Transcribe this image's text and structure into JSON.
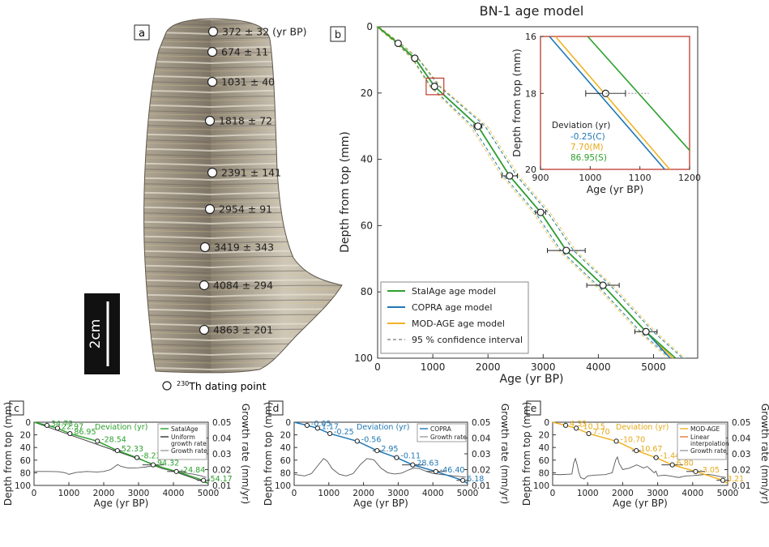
{
  "palette": {
    "satalage": "#2ca02c",
    "copra": "#1f77b4",
    "modage": "#f0b323",
    "linear": "#e07a3a",
    "growth": "#555555",
    "dev_green": "#2ca02c",
    "dev_blue": "#1f77b4",
    "dev_orange": "#e6a817"
  },
  "panel_a": {
    "letter": "a",
    "scale_label": "2cm",
    "legend_label": "230Th dating point",
    "legend_sup": "230",
    "legend_rest": "Th dating point",
    "dates": [
      {
        "text": "372 ± 32 (yr BP)"
      },
      {
        "text": "674 ± 11"
      },
      {
        "text": "1031 ± 40"
      },
      {
        "text": "1818 ± 72"
      },
      {
        "text": "2391 ± 141"
      },
      {
        "text": "2954 ± 91"
      },
      {
        "text": "3419 ± 343"
      },
      {
        "text": "4084 ± 294"
      },
      {
        "text": "4863 ± 201"
      }
    ]
  },
  "chart_data": [
    {
      "id": "b",
      "type": "line",
      "title": "BN-1 age model",
      "letter": "b",
      "xlabel": "Age (yr BP)",
      "ylabel": "Depth from top (mm)",
      "xlim": [
        0,
        5800
      ],
      "ylim": [
        0,
        100
      ],
      "xticks": [
        0,
        1000,
        2000,
        3000,
        4000,
        5000
      ],
      "yticks": [
        0,
        20,
        40,
        60,
        80,
        100
      ],
      "legend_position": "bottom-left",
      "dating_points": [
        {
          "age": 372,
          "err": 32,
          "depth": 5
        },
        {
          "age": 674,
          "err": 11,
          "depth": 9.5
        },
        {
          "age": 1031,
          "err": 40,
          "depth": 18
        },
        {
          "age": 1818,
          "err": 72,
          "depth": 30
        },
        {
          "age": 2391,
          "err": 141,
          "depth": 45
        },
        {
          "age": 2954,
          "err": 91,
          "depth": 56
        },
        {
          "age": 3419,
          "err": 343,
          "depth": 67.5
        },
        {
          "age": 4084,
          "err": 294,
          "depth": 78
        },
        {
          "age": 4863,
          "err": 201,
          "depth": 92
        }
      ],
      "series": [
        {
          "name": "StalAge age model",
          "key": "satalage",
          "points": [
            [
              0,
              0
            ],
            [
              372,
              5
            ],
            [
              674,
              9.5
            ],
            [
              1031,
              18
            ],
            [
              1818,
              30
            ],
            [
              2391,
              45
            ],
            [
              2954,
              56
            ],
            [
              3419,
              67.5
            ],
            [
              4084,
              78
            ],
            [
              4863,
              92
            ],
            [
              5400,
              100
            ]
          ]
        },
        {
          "name": "COPRA age model",
          "key": "copra",
          "points": [
            [
              0,
              0
            ],
            [
              372,
              5
            ],
            [
              700,
              10
            ],
            [
              1031,
              18
            ],
            [
              1818,
              30
            ],
            [
              2391,
              45
            ],
            [
              2954,
              56
            ],
            [
              3419,
              67.5
            ],
            [
              4084,
              78
            ],
            [
              4863,
              92
            ],
            [
              5300,
              100
            ]
          ]
        },
        {
          "name": "MOD-AGE age model",
          "key": "modage",
          "points": [
            [
              0,
              0
            ],
            [
              372,
              5
            ],
            [
              690,
              10
            ],
            [
              1031,
              18
            ],
            [
              1818,
              30
            ],
            [
              2391,
              45
            ],
            [
              2954,
              56
            ],
            [
              3419,
              67.5
            ],
            [
              4084,
              78
            ],
            [
              4863,
              92
            ],
            [
              5350,
              100
            ]
          ]
        },
        {
          "name": "95 % confidence interval",
          "key": "ci"
        }
      ],
      "inset": {
        "xlabel": "Age (yr BP)",
        "ylabel": "Depth from top (mm)",
        "xlim": [
          900,
          1200
        ],
        "ylim": [
          16.5,
          20
        ],
        "xticks": [
          900,
          1000,
          1100,
          1200
        ],
        "yticks": [
          16,
          18,
          20
        ],
        "point": {
          "age": 1031,
          "err": 40,
          "depth": 18
        },
        "deviation_title": "Deviation (yr)",
        "deviations": [
          {
            "label": "-0.25(C)",
            "key": "copra"
          },
          {
            "label": "7.70(M)",
            "key": "modage"
          },
          {
            "label": "86.95(S)",
            "key": "satalage"
          }
        ],
        "lines": {
          "copra": [
            [
              918,
              16.5
            ],
            [
              1150,
              20
            ]
          ],
          "modage": [
            [
              930,
              16.5
            ],
            [
              1160,
              20
            ]
          ],
          "satalage": [
            [
              995,
              16.5
            ],
            [
              1200,
              19.5
            ]
          ]
        }
      }
    },
    {
      "id": "c",
      "type": "line",
      "letter": "c",
      "xlabel": "Age (yr BP)",
      "ylabel": "Depth from top (mm)",
      "y2label": "Growth rate (mm/yr)",
      "xlim": [
        0,
        5000
      ],
      "ylim": [
        0,
        100
      ],
      "y2lim": [
        0.01,
        0.05
      ],
      "xticks": [
        0,
        1000,
        2000,
        3000,
        4000,
        5000
      ],
      "yticks": [
        0,
        20,
        40,
        60,
        80,
        100
      ],
      "y2ticks": [
        0.01,
        0.02,
        0.03,
        0.04,
        0.05
      ],
      "model_key": "satalage",
      "deviation_title": "Deviation (yr)",
      "deviations": [
        "34.73",
        "22.97",
        "86.95",
        "-28.54",
        "52.33",
        "-8.23",
        "94.32",
        "-24.84",
        "-54.17"
      ],
      "legend": [
        {
          "name": "SatalAge",
          "key": "satalage"
        },
        {
          "name": "Uniform growth rate",
          "key": "uniform"
        },
        {
          "name": "Growth rate",
          "key": "growth"
        }
      ],
      "growth": [
        [
          0,
          0.0188
        ],
        [
          400,
          0.0188
        ],
        [
          700,
          0.0187
        ],
        [
          900,
          0.018
        ],
        [
          1000,
          0.017
        ],
        [
          1200,
          0.0182
        ],
        [
          1500,
          0.0188
        ],
        [
          1800,
          0.0185
        ],
        [
          2000,
          0.0188
        ],
        [
          2200,
          0.02
        ],
        [
          2400,
          0.0232
        ],
        [
          2500,
          0.022
        ],
        [
          2700,
          0.021
        ],
        [
          3000,
          0.0212
        ],
        [
          3200,
          0.0216
        ],
        [
          3400,
          0.0224
        ],
        [
          3500,
          0.0221
        ],
        [
          3700,
          0.0205
        ],
        [
          3900,
          0.0196
        ],
        [
          4000,
          0.019
        ],
        [
          4200,
          0.0183
        ],
        [
          4400,
          0.0176
        ],
        [
          4600,
          0.017
        ],
        [
          4800,
          0.016
        ],
        [
          4950,
          0.015
        ]
      ]
    },
    {
      "id": "d",
      "type": "line",
      "letter": "d",
      "xlabel": "Age (yr BP)",
      "ylabel": "Depth from top (mm)",
      "y2label": "Growth rate (mm/yr)",
      "xlim": [
        0,
        5000
      ],
      "ylim": [
        0,
        100
      ],
      "y2lim": [
        0.01,
        0.05
      ],
      "xticks": [
        0,
        1000,
        2000,
        3000,
        4000,
        5000
      ],
      "yticks": [
        0,
        20,
        40,
        60,
        80,
        100
      ],
      "y2ticks": [
        0.01,
        0.02,
        0.03,
        0.04,
        0.05
      ],
      "model_key": "copra",
      "deviation_title": "Deviation (yr)",
      "deviations": [
        "-0.05",
        "1.17",
        "-0.25",
        "-0.56",
        "2.95",
        "-0.11",
        "28.63",
        "-46.40",
        "6.18"
      ],
      "legend": [
        {
          "name": "COPRA",
          "key": "copra"
        },
        {
          "name": "Growth rate",
          "key": "growth"
        }
      ],
      "growth": [
        [
          0,
          0.017
        ],
        [
          300,
          0.016
        ],
        [
          500,
          0.0175
        ],
        [
          700,
          0.023
        ],
        [
          850,
          0.027
        ],
        [
          950,
          0.0255
        ],
        [
          1100,
          0.0205
        ],
        [
          1300,
          0.017
        ],
        [
          1500,
          0.016
        ],
        [
          1700,
          0.0175
        ],
        [
          1900,
          0.023
        ],
        [
          2100,
          0.027
        ],
        [
          2300,
          0.0262
        ],
        [
          2500,
          0.021
        ],
        [
          2700,
          0.018
        ],
        [
          2900,
          0.0172
        ],
        [
          3100,
          0.0178
        ],
        [
          3300,
          0.0198
        ],
        [
          3450,
          0.021
        ],
        [
          3600,
          0.0207
        ],
        [
          3800,
          0.019
        ],
        [
          4000,
          0.0176
        ],
        [
          4200,
          0.017
        ],
        [
          4400,
          0.0165
        ],
        [
          4700,
          0.0158
        ],
        [
          4950,
          0.0152
        ]
      ]
    },
    {
      "id": "e",
      "type": "line",
      "letter": "e",
      "xlabel": "Age (yr BP)",
      "ylabel": "Depth from top (mm)",
      "y2label": "Growth rate (mm/yr)",
      "xlim": [
        0,
        5000
      ],
      "ylim": [
        0,
        100
      ],
      "y2lim": [
        0.01,
        0.05
      ],
      "xticks": [
        0,
        1000,
        2000,
        3000,
        4000,
        5000
      ],
      "yticks": [
        0,
        20,
        40,
        60,
        80,
        100
      ],
      "y2ticks": [
        0.01,
        0.02,
        0.03,
        0.04,
        0.05
      ],
      "model_key": "modage",
      "deviation_title": "Deviation (yr)",
      "deviations": [
        "4.33",
        "-10.15",
        "7.70",
        "-10.70",
        "10.67",
        "-1.44",
        "6.80",
        "-3.05",
        "3.21"
      ],
      "legend": [
        {
          "name": "MOD-AGE",
          "key": "modage"
        },
        {
          "name": "Linear interpolation",
          "key": "linear"
        },
        {
          "name": "Growth rate",
          "key": "growth"
        }
      ],
      "growth": [
        [
          0,
          0.017
        ],
        [
          200,
          0.0168
        ],
        [
          400,
          0.017
        ],
        [
          550,
          0.0172
        ],
        [
          600,
          0.024
        ],
        [
          650,
          0.027
        ],
        [
          700,
          0.023
        ],
        [
          750,
          0.018
        ],
        [
          800,
          0.015
        ],
        [
          900,
          0.014
        ],
        [
          1000,
          0.016
        ],
        [
          1200,
          0.0165
        ],
        [
          1500,
          0.0168
        ],
        [
          1700,
          0.018
        ],
        [
          1800,
          0.026
        ],
        [
          1850,
          0.028
        ],
        [
          1900,
          0.024
        ],
        [
          2000,
          0.02
        ],
        [
          2200,
          0.021
        ],
        [
          2400,
          0.023
        ],
        [
          2600,
          0.021
        ],
        [
          2700,
          0.022
        ],
        [
          2800,
          0.02
        ],
        [
          2900,
          0.018
        ],
        [
          2950,
          0.019
        ],
        [
          3000,
          0.016
        ],
        [
          3200,
          0.0165
        ],
        [
          3400,
          0.0158
        ],
        [
          3600,
          0.015
        ],
        [
          3800,
          0.016
        ],
        [
          4000,
          0.0162
        ],
        [
          4200,
          0.0166
        ],
        [
          4400,
          0.017
        ],
        [
          4600,
          0.0165
        ],
        [
          4800,
          0.0155
        ],
        [
          4950,
          0.015
        ]
      ]
    }
  ]
}
